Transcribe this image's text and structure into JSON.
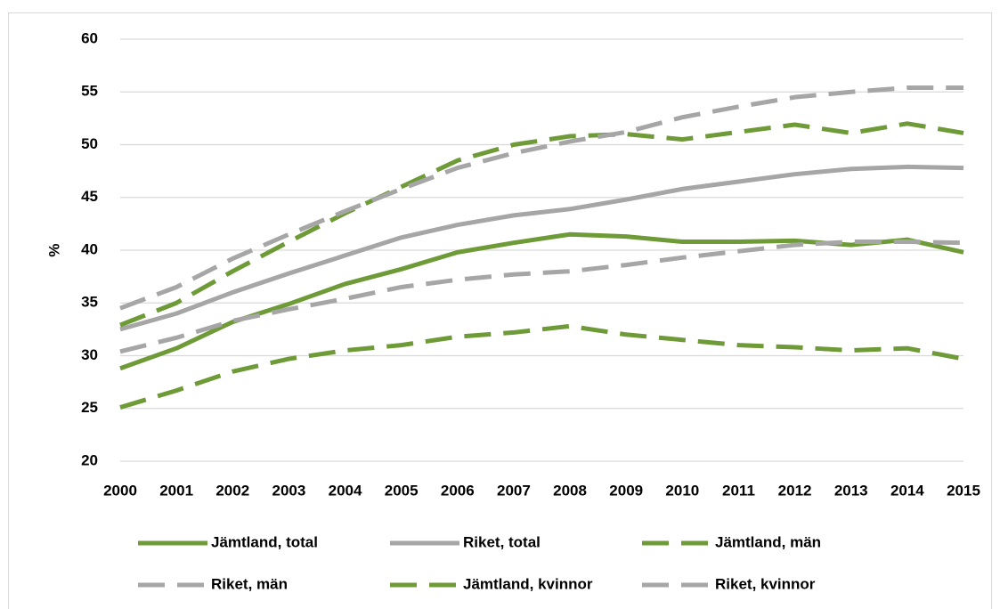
{
  "chart_data": {
    "type": "line",
    "y_label": "%",
    "categories": [
      "2000",
      "2001",
      "2002",
      "2003",
      "2004",
      "2005",
      "2006",
      "2007",
      "2008",
      "2009",
      "2010",
      "2011",
      "2012",
      "2013",
      "2014",
      "2015"
    ],
    "series": [
      {
        "name": "Jämtland, total",
        "color": "#6e9a37",
        "style": "solid",
        "values": [
          28.8,
          30.7,
          33.2,
          34.9,
          36.8,
          38.2,
          39.8,
          40.7,
          41.5,
          41.3,
          40.8,
          40.8,
          40.9,
          40.5,
          41.0,
          39.8
        ]
      },
      {
        "name": "Riket, total",
        "color": "#a6a6a6",
        "style": "solid",
        "values": [
          32.5,
          34.0,
          36.0,
          37.8,
          39.5,
          41.2,
          42.4,
          43.3,
          43.9,
          44.8,
          45.8,
          46.5,
          47.2,
          47.7,
          47.9,
          47.8
        ]
      },
      {
        "name": "Jämtland, män",
        "color": "#6e9a37",
        "style": "dashed",
        "values": [
          25.1,
          26.7,
          28.5,
          29.7,
          30.5,
          31.0,
          31.8,
          32.2,
          32.8,
          32.0,
          31.5,
          31.0,
          30.8,
          30.5,
          30.7,
          29.7
        ]
      },
      {
        "name": "Riket, män",
        "color": "#a6a6a6",
        "style": "dashed",
        "values": [
          30.4,
          31.7,
          33.3,
          34.4,
          35.4,
          36.5,
          37.2,
          37.7,
          38.0,
          38.6,
          39.3,
          39.9,
          40.5,
          40.8,
          40.8,
          40.7
        ]
      },
      {
        "name": "Jämtland, kvinnor",
        "color": "#6e9a37",
        "style": "dashed",
        "values": [
          32.9,
          35.0,
          38.0,
          40.8,
          43.5,
          46.0,
          48.5,
          50.0,
          50.8,
          51.0,
          50.5,
          51.2,
          51.9,
          51.1,
          52.0,
          51.1
        ]
      },
      {
        "name": "Riket, kvinnor",
        "color": "#a6a6a6",
        "style": "dashed",
        "values": [
          34.5,
          36.5,
          39.2,
          41.5,
          43.7,
          45.8,
          47.8,
          49.2,
          50.3,
          51.2,
          52.6,
          53.6,
          54.5,
          55.0,
          55.4,
          55.4
        ]
      }
    ],
    "ylim": [
      20,
      60
    ],
    "yticks": [
      20,
      25,
      30,
      35,
      40,
      45,
      50,
      55,
      60
    ],
    "grid": true,
    "legend": "bottom"
  }
}
